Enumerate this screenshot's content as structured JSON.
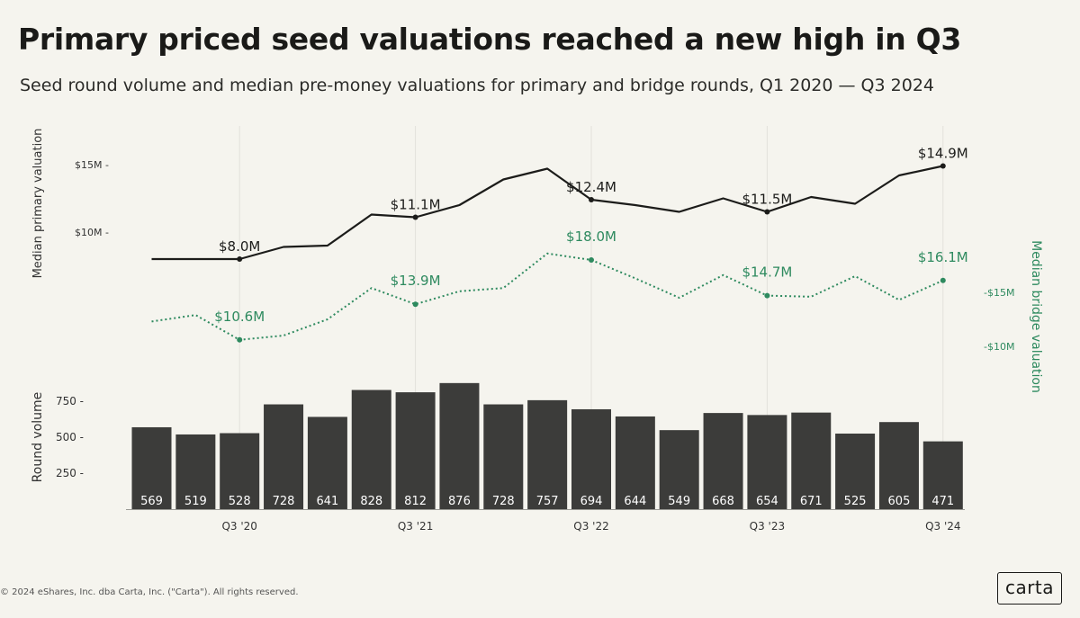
{
  "header": {
    "title": "Primary priced seed valuations reached a new high in Q3",
    "subtitle": "Seed round volume and median pre-money valuations for primary and bridge rounds, Q1 2020 — Q3 2024"
  },
  "footer": {
    "copyright": "© 2024 eShares, Inc. dba Carta, Inc. (\"Carta\"). All rights reserved.",
    "logo": "carta"
  },
  "colors": {
    "primary_line": "#1c1c1a",
    "bridge_line": "#2e8a5f",
    "bar_fill": "#3c3c3a",
    "bar_label": "#ffffff",
    "axis_text": "#333333",
    "grid": "#e2e1db"
  },
  "chart_data": [
    {
      "type": "line",
      "name": "primary",
      "ylabel": "Median primary valuation",
      "unit": "$M",
      "ylim": [
        7,
        16
      ],
      "yticks": [
        {
          "value": 10,
          "label": "$10M"
        },
        {
          "value": 15,
          "label": "$15M"
        }
      ],
      "values": [
        8.0,
        8.0,
        8.0,
        8.9,
        9.0,
        11.3,
        11.1,
        12.0,
        13.9,
        14.7,
        12.4,
        12.0,
        11.5,
        12.5,
        11.5,
        12.6,
        12.1,
        14.2,
        14.9
      ],
      "annotations": [
        {
          "index": 2,
          "label": "$8.0M"
        },
        {
          "index": 6,
          "label": "$11.1M"
        },
        {
          "index": 10,
          "label": "$12.4M"
        },
        {
          "index": 14,
          "label": "$11.5M"
        },
        {
          "index": 18,
          "label": "$14.9M"
        }
      ]
    },
    {
      "type": "line",
      "name": "bridge",
      "style": "dotted",
      "ylabel": "Median bridge valuation",
      "unit": "$M",
      "ylim": [
        8.5,
        19.5
      ],
      "yticks": [
        {
          "value": 10,
          "label": "$10M"
        },
        {
          "value": 15,
          "label": "$15M"
        }
      ],
      "values": [
        12.3,
        12.9,
        10.6,
        11.0,
        12.5,
        15.4,
        13.9,
        15.1,
        15.4,
        18.6,
        18.0,
        16.3,
        14.5,
        16.6,
        14.7,
        14.6,
        16.5,
        14.3,
        16.1
      ],
      "annotations": [
        {
          "index": 2,
          "label": "$10.6M"
        },
        {
          "index": 6,
          "label": "$13.9M"
        },
        {
          "index": 10,
          "label": "$18.0M"
        },
        {
          "index": 14,
          "label": "$14.7M"
        },
        {
          "index": 18,
          "label": "$16.1M"
        }
      ]
    },
    {
      "type": "bar",
      "name": "volume",
      "ylabel": "Round volume",
      "ylim": [
        0,
        1000
      ],
      "yticks": [
        250,
        500,
        750
      ],
      "values": [
        569,
        519,
        528,
        728,
        641,
        828,
        812,
        876,
        728,
        757,
        694,
        644,
        549,
        668,
        654,
        671,
        525,
        605,
        471
      ],
      "xticks": [
        {
          "index": 2,
          "label": "Q3 '20"
        },
        {
          "index": 6,
          "label": "Q3 '21"
        },
        {
          "index": 10,
          "label": "Q3 '22"
        },
        {
          "index": 14,
          "label": "Q3 '23"
        },
        {
          "index": 18,
          "label": "Q3 '24"
        }
      ]
    }
  ]
}
